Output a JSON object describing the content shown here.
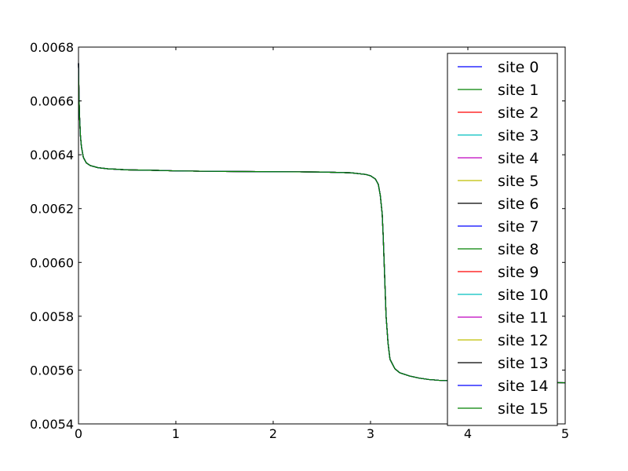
{
  "chart_data": {
    "type": "line",
    "title": "",
    "xlabel": "",
    "ylabel": "",
    "xlim": [
      0,
      5
    ],
    "ylim": [
      0.0054,
      0.0068
    ],
    "xticks": [
      0,
      1,
      2,
      3,
      4,
      5
    ],
    "xtick_labels": [
      "0",
      "1",
      "2",
      "3",
      "4",
      "5"
    ],
    "yticks": [
      0.0054,
      0.0056,
      0.0058,
      0.006,
      0.0062,
      0.0064,
      0.0066,
      0.0068
    ],
    "ytick_labels": [
      "0.0054",
      "0.0056",
      "0.0058",
      "0.0060",
      "0.0062",
      "0.0064",
      "0.0066",
      "0.0068"
    ],
    "grid": false,
    "legend_position": "top-right",
    "x": [
      0.0,
      0.005,
      0.01,
      0.02,
      0.03,
      0.05,
      0.08,
      0.12,
      0.2,
      0.3,
      0.5,
      0.8,
      1.0,
      1.5,
      2.0,
      2.5,
      2.8,
      2.95,
      3.0,
      3.05,
      3.08,
      3.1,
      3.12,
      3.13,
      3.14,
      3.15,
      3.16,
      3.18,
      3.2,
      3.25,
      3.3,
      3.4,
      3.5,
      3.6,
      3.7,
      4.0,
      4.5,
      5.0
    ],
    "series": [
      {
        "name": "site 0",
        "color": "#0000ff",
        "values": [
          0.00674,
          0.00662,
          0.00655,
          0.00647,
          0.00643,
          0.00639,
          0.00637,
          0.00636,
          0.006352,
          0.006348,
          0.006344,
          0.006342,
          0.00634,
          0.006338,
          0.006337,
          0.006336,
          0.006333,
          0.006327,
          0.006322,
          0.00631,
          0.00629,
          0.00625,
          0.00618,
          0.0061,
          0.006,
          0.0059,
          0.0058,
          0.0057,
          0.00564,
          0.005605,
          0.00559,
          0.005578,
          0.00557,
          0.005565,
          0.005562,
          0.005558,
          0.005555,
          0.005553
        ]
      },
      {
        "name": "site 1",
        "color": "#008000",
        "values": [
          0.00674,
          0.00662,
          0.00655,
          0.00647,
          0.00643,
          0.00639,
          0.00637,
          0.00636,
          0.006352,
          0.006348,
          0.006344,
          0.006342,
          0.00634,
          0.006338,
          0.006337,
          0.006336,
          0.006333,
          0.006327,
          0.006322,
          0.00631,
          0.00629,
          0.00625,
          0.00618,
          0.0061,
          0.006,
          0.0059,
          0.0058,
          0.0057,
          0.00564,
          0.005605,
          0.00559,
          0.005578,
          0.00557,
          0.005565,
          0.005562,
          0.005558,
          0.005555,
          0.005553
        ]
      },
      {
        "name": "site 2",
        "color": "#ff0000",
        "values": [
          0.00674,
          0.00662,
          0.00655,
          0.00647,
          0.00643,
          0.00639,
          0.00637,
          0.00636,
          0.006352,
          0.006348,
          0.006344,
          0.006342,
          0.00634,
          0.006338,
          0.006337,
          0.006336,
          0.006333,
          0.006327,
          0.006322,
          0.00631,
          0.00629,
          0.00625,
          0.00618,
          0.0061,
          0.006,
          0.0059,
          0.0058,
          0.0057,
          0.00564,
          0.005605,
          0.00559,
          0.005578,
          0.00557,
          0.005565,
          0.005562,
          0.005558,
          0.005555,
          0.005553
        ]
      },
      {
        "name": "site 3",
        "color": "#00bfbf",
        "values": [
          0.00674,
          0.00662,
          0.00655,
          0.00647,
          0.00643,
          0.00639,
          0.00637,
          0.00636,
          0.006352,
          0.006348,
          0.006344,
          0.006342,
          0.00634,
          0.006338,
          0.006337,
          0.006336,
          0.006333,
          0.006327,
          0.006322,
          0.00631,
          0.00629,
          0.00625,
          0.00618,
          0.0061,
          0.006,
          0.0059,
          0.0058,
          0.0057,
          0.00564,
          0.005605,
          0.00559,
          0.005578,
          0.00557,
          0.005565,
          0.005562,
          0.005558,
          0.005555,
          0.005553
        ]
      },
      {
        "name": "site 4",
        "color": "#bf00bf",
        "values": [
          0.00674,
          0.00662,
          0.00655,
          0.00647,
          0.00643,
          0.00639,
          0.00637,
          0.00636,
          0.006352,
          0.006348,
          0.006344,
          0.006342,
          0.00634,
          0.006338,
          0.006337,
          0.006336,
          0.006333,
          0.006327,
          0.006322,
          0.00631,
          0.00629,
          0.00625,
          0.00618,
          0.0061,
          0.006,
          0.0059,
          0.0058,
          0.0057,
          0.00564,
          0.005605,
          0.00559,
          0.005578,
          0.00557,
          0.005565,
          0.005562,
          0.005558,
          0.005555,
          0.005553
        ]
      },
      {
        "name": "site 5",
        "color": "#bfbf00",
        "values": [
          0.00674,
          0.00662,
          0.00655,
          0.00647,
          0.00643,
          0.00639,
          0.00637,
          0.00636,
          0.006352,
          0.006348,
          0.006344,
          0.006342,
          0.00634,
          0.006338,
          0.006337,
          0.006336,
          0.006333,
          0.006327,
          0.006322,
          0.00631,
          0.00629,
          0.00625,
          0.00618,
          0.0061,
          0.006,
          0.0059,
          0.0058,
          0.0057,
          0.00564,
          0.005605,
          0.00559,
          0.005578,
          0.00557,
          0.005565,
          0.005562,
          0.005558,
          0.005555,
          0.005553
        ]
      },
      {
        "name": "site 6",
        "color": "#000000",
        "values": [
          0.00674,
          0.00662,
          0.00655,
          0.00647,
          0.00643,
          0.00639,
          0.00637,
          0.00636,
          0.006352,
          0.006348,
          0.006344,
          0.006342,
          0.00634,
          0.006338,
          0.006337,
          0.006336,
          0.006333,
          0.006327,
          0.006322,
          0.00631,
          0.00629,
          0.00625,
          0.00618,
          0.0061,
          0.006,
          0.0059,
          0.0058,
          0.0057,
          0.00564,
          0.005605,
          0.00559,
          0.005578,
          0.00557,
          0.005565,
          0.005562,
          0.005558,
          0.005555,
          0.005553
        ]
      },
      {
        "name": "site 7",
        "color": "#0000ff",
        "values": [
          0.00674,
          0.00662,
          0.00655,
          0.00647,
          0.00643,
          0.00639,
          0.00637,
          0.00636,
          0.006352,
          0.006348,
          0.006344,
          0.006342,
          0.00634,
          0.006338,
          0.006337,
          0.006336,
          0.006333,
          0.006327,
          0.006322,
          0.00631,
          0.00629,
          0.00625,
          0.00618,
          0.0061,
          0.006,
          0.0059,
          0.0058,
          0.0057,
          0.00564,
          0.005605,
          0.00559,
          0.005578,
          0.00557,
          0.005565,
          0.005562,
          0.005558,
          0.005555,
          0.005553
        ]
      },
      {
        "name": "site 8",
        "color": "#008000",
        "values": [
          0.00674,
          0.00662,
          0.00655,
          0.00647,
          0.00643,
          0.00639,
          0.00637,
          0.00636,
          0.006352,
          0.006348,
          0.006344,
          0.006342,
          0.00634,
          0.006338,
          0.006337,
          0.006336,
          0.006333,
          0.006327,
          0.006322,
          0.00631,
          0.00629,
          0.00625,
          0.00618,
          0.0061,
          0.006,
          0.0059,
          0.0058,
          0.0057,
          0.00564,
          0.005605,
          0.00559,
          0.005578,
          0.00557,
          0.005565,
          0.005562,
          0.005558,
          0.005555,
          0.005553
        ]
      },
      {
        "name": "site 9",
        "color": "#ff0000",
        "values": [
          0.00674,
          0.00662,
          0.00655,
          0.00647,
          0.00643,
          0.00639,
          0.00637,
          0.00636,
          0.006352,
          0.006348,
          0.006344,
          0.006342,
          0.00634,
          0.006338,
          0.006337,
          0.006336,
          0.006333,
          0.006327,
          0.006322,
          0.00631,
          0.00629,
          0.00625,
          0.00618,
          0.0061,
          0.006,
          0.0059,
          0.0058,
          0.0057,
          0.00564,
          0.005605,
          0.00559,
          0.005578,
          0.00557,
          0.005565,
          0.005562,
          0.005558,
          0.005555,
          0.005553
        ]
      },
      {
        "name": "site 10",
        "color": "#00bfbf",
        "values": [
          0.00674,
          0.00662,
          0.00655,
          0.00647,
          0.00643,
          0.00639,
          0.00637,
          0.00636,
          0.006352,
          0.006348,
          0.006344,
          0.006342,
          0.00634,
          0.006338,
          0.006337,
          0.006336,
          0.006333,
          0.006327,
          0.006322,
          0.00631,
          0.00629,
          0.00625,
          0.00618,
          0.0061,
          0.006,
          0.0059,
          0.0058,
          0.0057,
          0.00564,
          0.005605,
          0.00559,
          0.005578,
          0.00557,
          0.005565,
          0.005562,
          0.005558,
          0.005555,
          0.005553
        ]
      },
      {
        "name": "site 11",
        "color": "#bf00bf",
        "values": [
          0.00674,
          0.00662,
          0.00655,
          0.00647,
          0.00643,
          0.00639,
          0.00637,
          0.00636,
          0.006352,
          0.006348,
          0.006344,
          0.006342,
          0.00634,
          0.006338,
          0.006337,
          0.006336,
          0.006333,
          0.006327,
          0.006322,
          0.00631,
          0.00629,
          0.00625,
          0.00618,
          0.0061,
          0.006,
          0.0059,
          0.0058,
          0.0057,
          0.00564,
          0.005605,
          0.00559,
          0.005578,
          0.00557,
          0.005565,
          0.005562,
          0.005558,
          0.005555,
          0.005553
        ]
      },
      {
        "name": "site 12",
        "color": "#bfbf00",
        "values": [
          0.00674,
          0.00662,
          0.00655,
          0.00647,
          0.00643,
          0.00639,
          0.00637,
          0.00636,
          0.006352,
          0.006348,
          0.006344,
          0.006342,
          0.00634,
          0.006338,
          0.006337,
          0.006336,
          0.006333,
          0.006327,
          0.006322,
          0.00631,
          0.00629,
          0.00625,
          0.00618,
          0.0061,
          0.006,
          0.0059,
          0.0058,
          0.0057,
          0.00564,
          0.005605,
          0.00559,
          0.005578,
          0.00557,
          0.005565,
          0.005562,
          0.005558,
          0.005555,
          0.005553
        ]
      },
      {
        "name": "site 13",
        "color": "#000000",
        "values": [
          0.00674,
          0.00662,
          0.00655,
          0.00647,
          0.00643,
          0.00639,
          0.00637,
          0.00636,
          0.006352,
          0.006348,
          0.006344,
          0.006342,
          0.00634,
          0.006338,
          0.006337,
          0.006336,
          0.006333,
          0.006327,
          0.006322,
          0.00631,
          0.00629,
          0.00625,
          0.00618,
          0.0061,
          0.006,
          0.0059,
          0.0058,
          0.0057,
          0.00564,
          0.005605,
          0.00559,
          0.005578,
          0.00557,
          0.005565,
          0.005562,
          0.005558,
          0.005555,
          0.005553
        ]
      },
      {
        "name": "site 14",
        "color": "#0000ff",
        "values": [
          0.00674,
          0.00662,
          0.00655,
          0.00647,
          0.00643,
          0.00639,
          0.00637,
          0.00636,
          0.006352,
          0.006348,
          0.006344,
          0.006342,
          0.00634,
          0.006338,
          0.006337,
          0.006336,
          0.006333,
          0.006327,
          0.006322,
          0.00631,
          0.00629,
          0.00625,
          0.00618,
          0.0061,
          0.006,
          0.0059,
          0.0058,
          0.0057,
          0.00564,
          0.005605,
          0.00559,
          0.005578,
          0.00557,
          0.005565,
          0.005562,
          0.005558,
          0.005555,
          0.005553
        ]
      },
      {
        "name": "site 15",
        "color": "#008000",
        "values": [
          0.00674,
          0.00662,
          0.00655,
          0.00647,
          0.00643,
          0.00639,
          0.00637,
          0.00636,
          0.006352,
          0.006348,
          0.006344,
          0.006342,
          0.00634,
          0.006338,
          0.006337,
          0.006336,
          0.006333,
          0.006327,
          0.006322,
          0.00631,
          0.00629,
          0.00625,
          0.00618,
          0.0061,
          0.006,
          0.0059,
          0.0058,
          0.0057,
          0.00564,
          0.005605,
          0.00559,
          0.005578,
          0.00557,
          0.005565,
          0.005562,
          0.005558,
          0.005555,
          0.005553
        ]
      }
    ]
  }
}
